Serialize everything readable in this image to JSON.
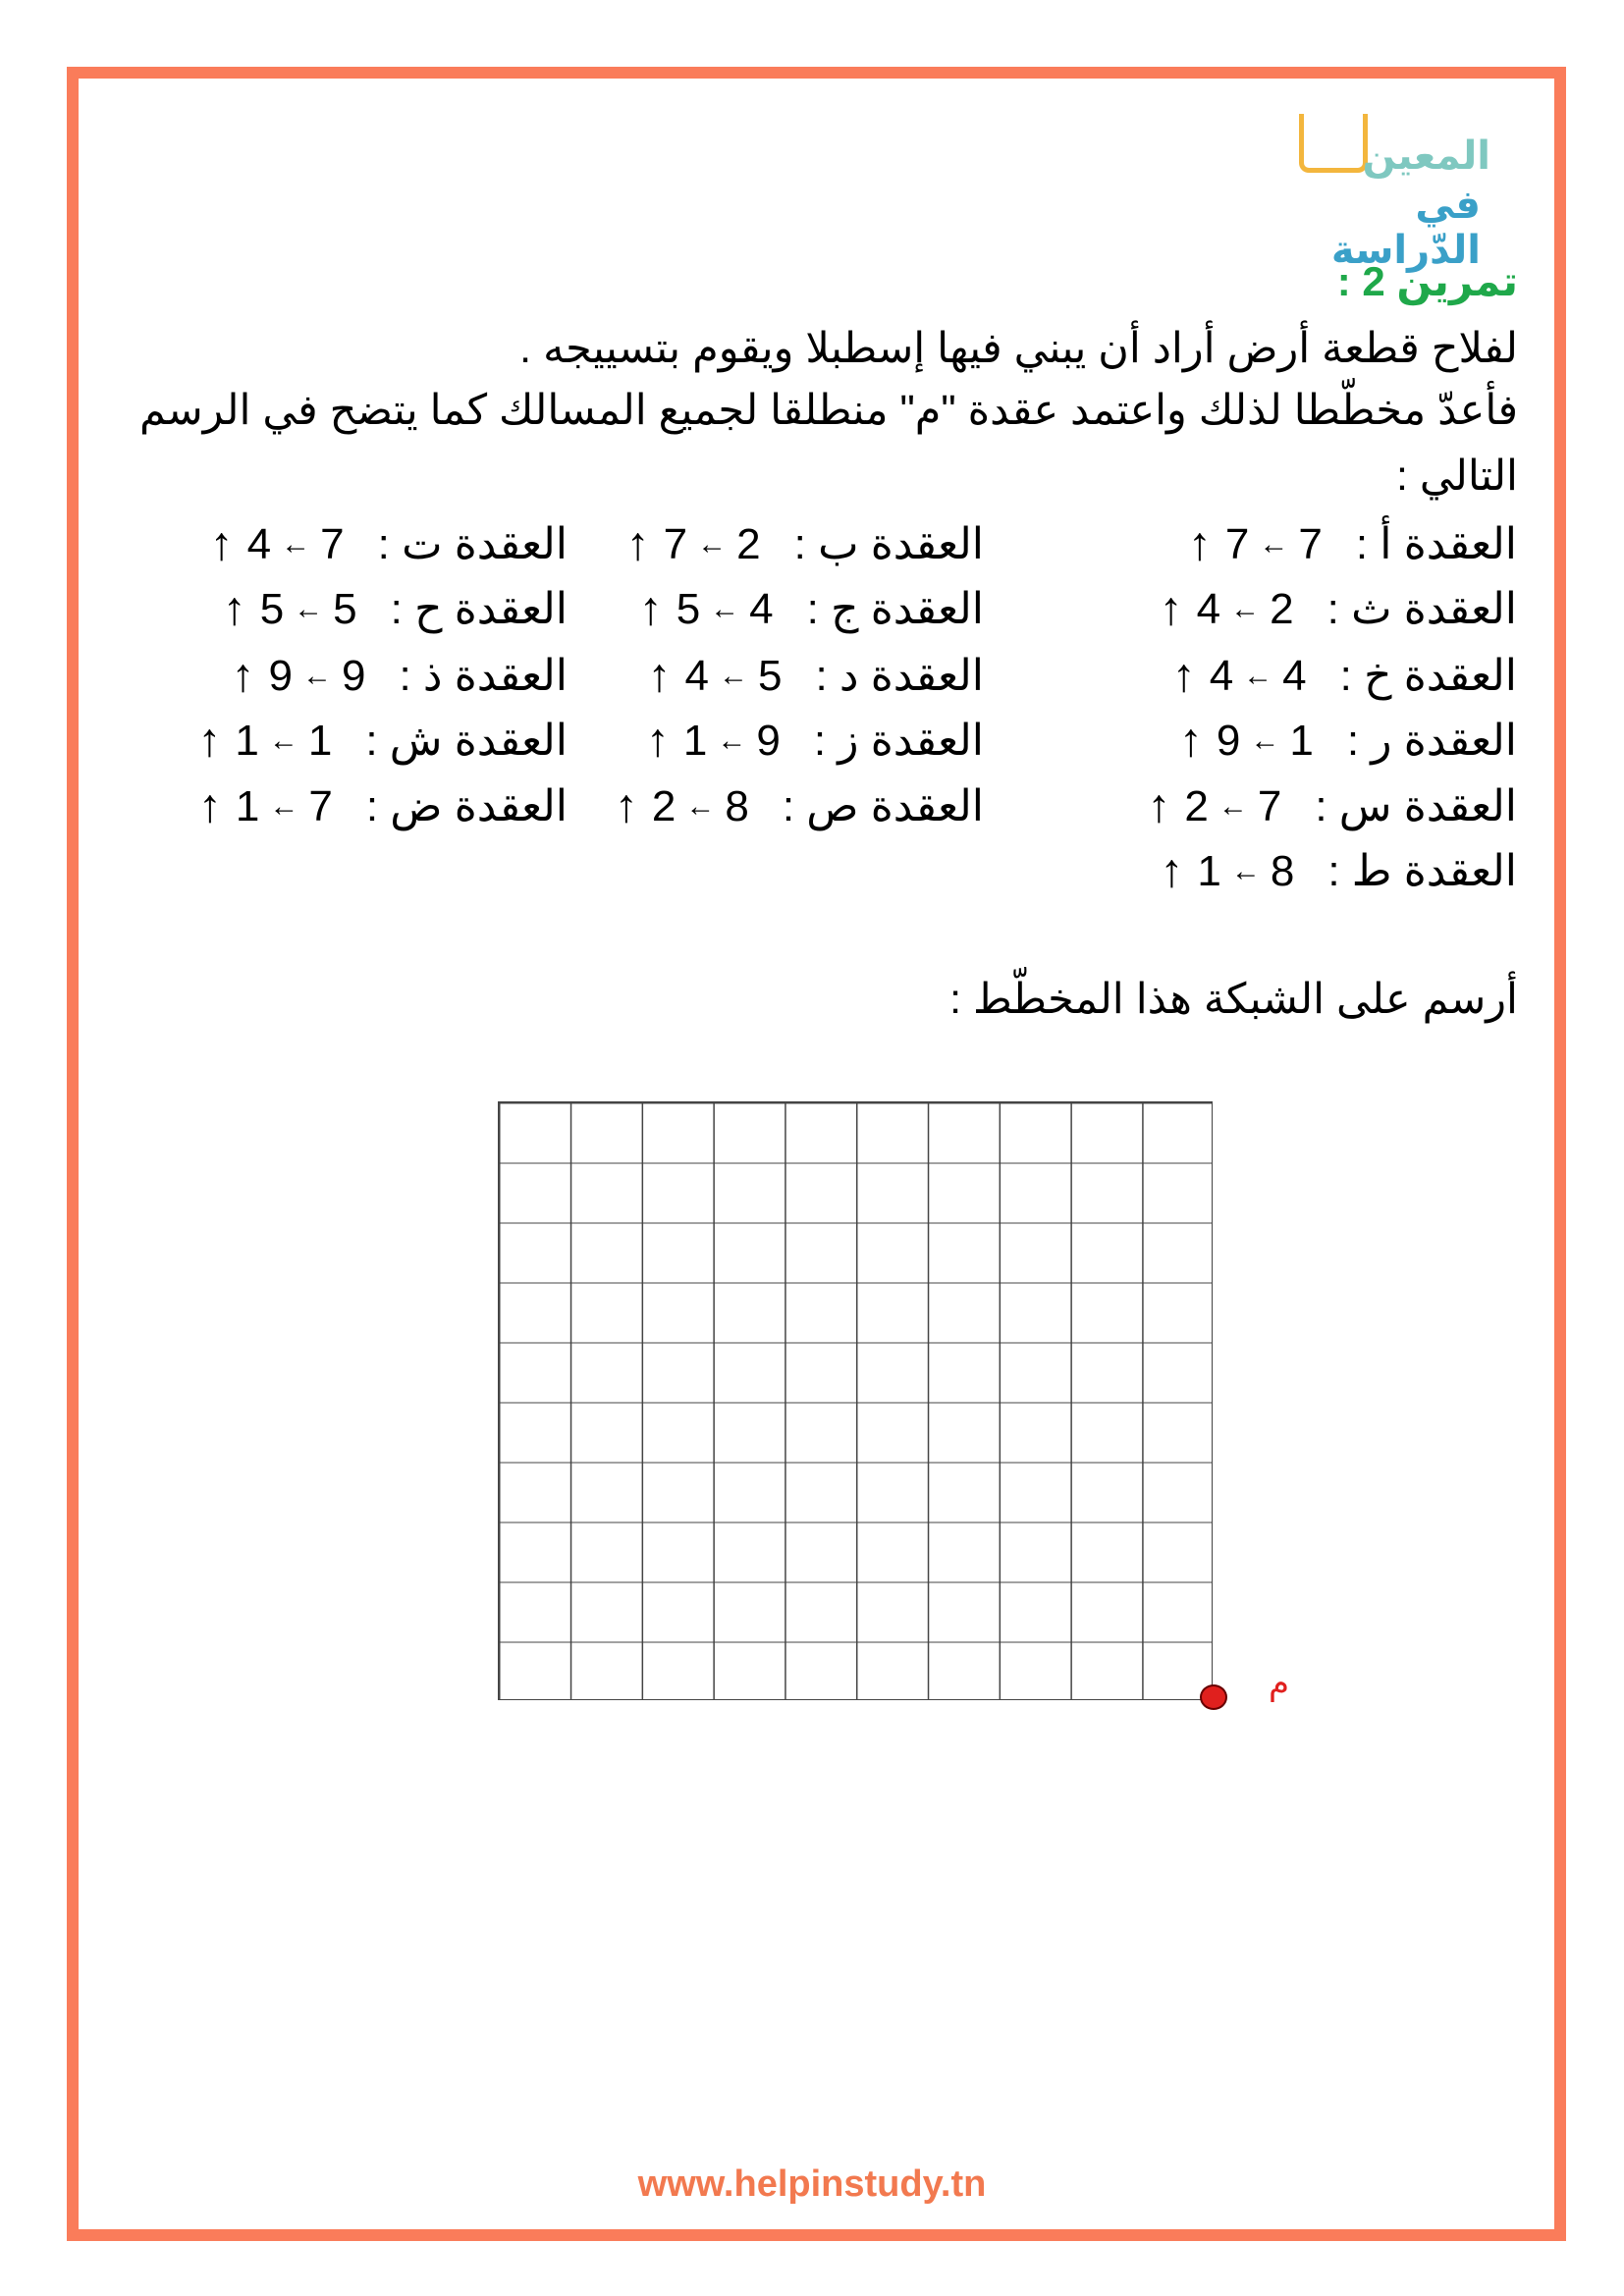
{
  "logo": {
    "line1": "المعين",
    "line2": "في الدّراسة"
  },
  "title": "تمرين 2 :",
  "paragraph": [
    "لفلاح قطعة أرض أراد أن يبني فيها إسطبلا ويقوم بتسييجه .",
    "فأعدّ مخطّطا لذلك واعتمد عقدة \"م\" منطلقا لجميع المسالك كما يتضح في الرسم",
    "التالي :"
  ],
  "arrows": {
    "left": "←",
    "up": "↑"
  },
  "nodes": [
    {
      "label": "العقدة أ :",
      "left": "7",
      "up": "7"
    },
    {
      "label": "العقدة ث :",
      "left": "2",
      "up": "4"
    },
    {
      "label": "العقدة خ :",
      "left": "4",
      "up": "4"
    },
    {
      "label": "العقدة ر :",
      "left": "1",
      "up": "9"
    },
    {
      "label": "العقدة س :",
      "left": "7",
      "up": "2"
    },
    {
      "label": "العقدة ط :",
      "left": "8",
      "up": "1"
    },
    {
      "label": "العقدة ب :",
      "left": "2",
      "up": "7"
    },
    {
      "label": "العقدة ج :",
      "left": "4",
      "up": "5"
    },
    {
      "label": "العقدة د :",
      "left": "5",
      "up": "4"
    },
    {
      "label": "العقدة ز :",
      "left": "9",
      "up": "1"
    },
    {
      "label": "العقدة ص :",
      "left": "8",
      "up": "2"
    },
    {
      "label": "العقدة ت :",
      "left": "7",
      "up": "4"
    },
    {
      "label": "العقدة ح :",
      "left": "5",
      "up": "5"
    },
    {
      "label": "العقدة ذ :",
      "left": "9",
      "up": "9"
    },
    {
      "label": "العقدة ش :",
      "left": "1",
      "up": "1"
    },
    {
      "label": "العقدة ض :",
      "left": "7",
      "up": "1"
    }
  ],
  "instruction": "أرسم على الشبكة هذا المخطّط :",
  "grid": {
    "columns": 10,
    "rows": 10,
    "origin_label": "م",
    "origin_color": "#e0201e"
  },
  "footer": "www.helpinstudy.tn",
  "colors": {
    "frame": "#fa7c5a",
    "title": "#1fa84a",
    "footer": "#f2794f"
  }
}
